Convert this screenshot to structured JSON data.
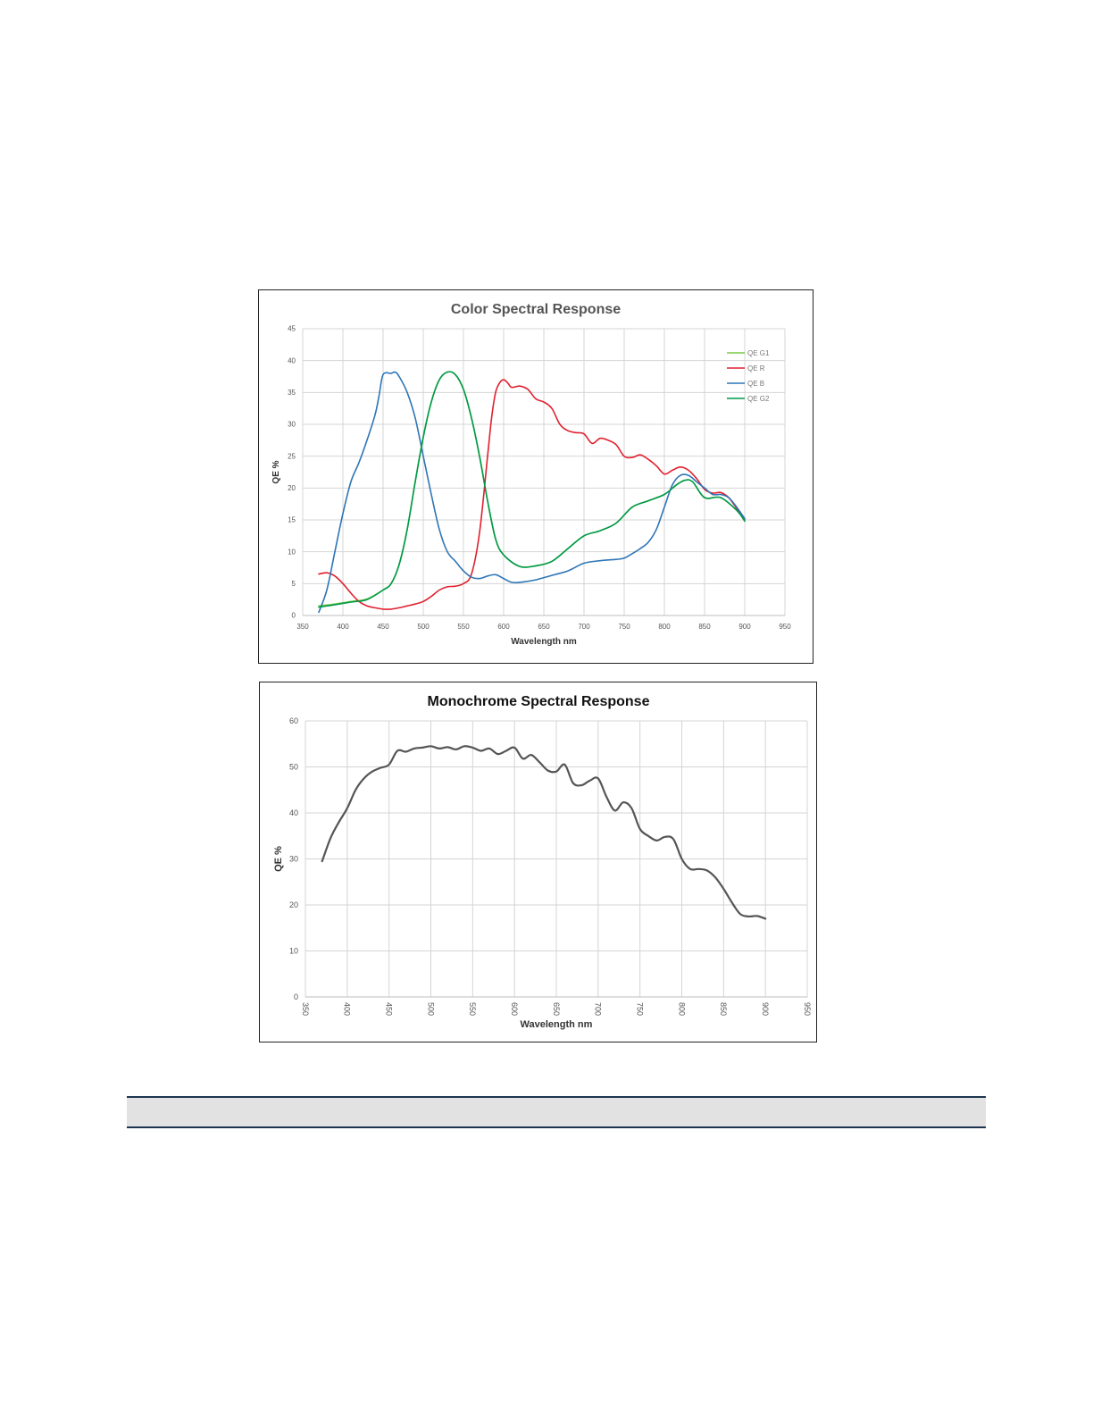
{
  "chart_data": [
    {
      "type": "line",
      "title": "Color Spectral Response",
      "xlabel": "Wavelength nm",
      "ylabel": "QE %",
      "xlim": [
        350,
        950
      ],
      "ylim": [
        0,
        45
      ],
      "xticks": [
        350,
        400,
        450,
        500,
        550,
        600,
        650,
        700,
        750,
        800,
        850,
        900,
        950
      ],
      "yticks": [
        0,
        5,
        10,
        15,
        20,
        25,
        30,
        35,
        40,
        45
      ],
      "grid": true,
      "legend": "top-right",
      "series": [
        {
          "name": "QE G1",
          "color": "#7ac943",
          "x": [
            370,
            390,
            410,
            430,
            450,
            460,
            470,
            480,
            490,
            500,
            510,
            520,
            530,
            540,
            550,
            560,
            570,
            580,
            590,
            600,
            620,
            640,
            660,
            680,
            700,
            720,
            740,
            760,
            780,
            800,
            815,
            825,
            835,
            850,
            870,
            890,
            900
          ],
          "values": [
            1.5,
            1.8,
            2.2,
            2.6,
            4.0,
            5.0,
            8.0,
            13.5,
            21.0,
            28.0,
            33.5,
            37.0,
            38.2,
            37.8,
            35.5,
            31.0,
            25.0,
            18.0,
            12.0,
            9.5,
            7.7,
            7.8,
            8.5,
            10.5,
            12.5,
            13.3,
            14.5,
            17.0,
            18.0,
            19.0,
            20.5,
            21.2,
            21.0,
            18.5,
            18.5,
            16.5,
            15.0
          ]
        },
        {
          "name": "QE R",
          "color": "#e0202e",
          "x": [
            370,
            380,
            390,
            400,
            410,
            420,
            430,
            440,
            450,
            460,
            470,
            480,
            490,
            500,
            510,
            520,
            530,
            540,
            550,
            560,
            570,
            580,
            585,
            590,
            595,
            600,
            605,
            610,
            620,
            630,
            640,
            650,
            660,
            670,
            680,
            690,
            700,
            710,
            720,
            730,
            740,
            750,
            760,
            770,
            780,
            790,
            800,
            810,
            820,
            830,
            840,
            850,
            860,
            870,
            880,
            890,
            900
          ],
          "values": [
            6.5,
            6.7,
            6.2,
            5.0,
            3.5,
            2.2,
            1.5,
            1.2,
            1.0,
            1.0,
            1.2,
            1.5,
            1.8,
            2.2,
            3.0,
            4.0,
            4.5,
            4.6,
            5.0,
            6.5,
            13.0,
            25.0,
            31.0,
            35.0,
            36.5,
            37.0,
            36.5,
            35.8,
            36.0,
            35.5,
            34.0,
            33.5,
            32.5,
            30.0,
            29.0,
            28.7,
            28.5,
            27.0,
            27.8,
            27.5,
            26.8,
            25.0,
            24.8,
            25.2,
            24.5,
            23.5,
            22.2,
            22.8,
            23.3,
            22.8,
            21.5,
            19.8,
            19.2,
            19.3,
            18.5,
            16.8,
            15.0
          ]
        },
        {
          "name": "QE B",
          "color": "#2e75b6",
          "x": [
            370,
            380,
            390,
            400,
            410,
            420,
            430,
            440,
            445,
            450,
            460,
            465,
            470,
            480,
            490,
            500,
            510,
            520,
            530,
            540,
            550,
            560,
            570,
            580,
            590,
            600,
            610,
            620,
            640,
            660,
            680,
            700,
            720,
            740,
            750,
            760,
            770,
            780,
            790,
            800,
            810,
            820,
            830,
            840,
            850,
            860,
            870,
            880,
            890,
            900
          ],
          "values": [
            0.5,
            4.0,
            10.0,
            16.0,
            21.0,
            24.0,
            27.5,
            31.5,
            34.5,
            37.8,
            38.0,
            38.2,
            37.5,
            35.0,
            31.0,
            25.0,
            19.0,
            13.5,
            10.0,
            8.5,
            7.0,
            6.0,
            5.8,
            6.2,
            6.4,
            5.8,
            5.2,
            5.2,
            5.6,
            6.3,
            7.0,
            8.2,
            8.6,
            8.8,
            9.0,
            9.7,
            10.5,
            11.5,
            13.5,
            17.0,
            20.5,
            22.0,
            22.0,
            21.0,
            20.0,
            19.0,
            19.0,
            18.5,
            17.0,
            15.2
          ]
        },
        {
          "name": "QE G2",
          "color": "#009a49",
          "x": [
            370,
            390,
            410,
            430,
            450,
            460,
            470,
            480,
            490,
            500,
            510,
            520,
            530,
            540,
            550,
            560,
            570,
            580,
            590,
            600,
            620,
            640,
            660,
            680,
            700,
            720,
            740,
            760,
            780,
            800,
            815,
            825,
            835,
            850,
            870,
            890,
            900
          ],
          "values": [
            1.3,
            1.7,
            2.1,
            2.5,
            4.0,
            5.0,
            8.0,
            13.5,
            21.0,
            28.0,
            33.5,
            37.0,
            38.2,
            37.8,
            35.5,
            31.0,
            25.0,
            18.0,
            12.0,
            9.5,
            7.7,
            7.8,
            8.5,
            10.5,
            12.5,
            13.3,
            14.5,
            17.0,
            18.0,
            19.0,
            20.5,
            21.2,
            21.0,
            18.5,
            18.5,
            16.5,
            14.8
          ]
        }
      ]
    },
    {
      "type": "line",
      "title": "Monochrome Spectral Response",
      "xlabel": "Wavelength nm",
      "ylabel": "QE %",
      "xlim": [
        350,
        950
      ],
      "ylim": [
        0,
        60
      ],
      "xticks": [
        350,
        400,
        450,
        500,
        550,
        600,
        650,
        700,
        750,
        800,
        850,
        900,
        950
      ],
      "yticks": [
        0,
        10,
        20,
        30,
        40,
        50,
        60
      ],
      "grid": true,
      "series": [
        {
          "color": "#555555",
          "x": [
            370,
            380,
            390,
            400,
            410,
            420,
            430,
            440,
            450,
            460,
            470,
            480,
            490,
            500,
            510,
            520,
            530,
            540,
            550,
            560,
            570,
            580,
            590,
            600,
            610,
            620,
            630,
            640,
            650,
            660,
            670,
            680,
            690,
            700,
            710,
            720,
            730,
            740,
            750,
            760,
            770,
            780,
            790,
            800,
            810,
            820,
            830,
            840,
            850,
            860,
            870,
            880,
            890,
            900
          ],
          "values": [
            29.5,
            34.5,
            38.0,
            41.0,
            45.0,
            47.5,
            49.0,
            49.8,
            50.5,
            53.5,
            53.3,
            54.0,
            54.2,
            54.5,
            54.0,
            54.3,
            53.8,
            54.5,
            54.2,
            53.5,
            54.0,
            52.8,
            53.5,
            54.2,
            51.8,
            52.6,
            51.0,
            49.2,
            49.0,
            50.5,
            46.5,
            46.0,
            47.0,
            47.5,
            43.5,
            40.5,
            42.3,
            41.0,
            36.5,
            35.0,
            34.0,
            34.8,
            34.3,
            30.0,
            27.8,
            27.8,
            27.5,
            26.0,
            23.5,
            20.5,
            18.0,
            17.5,
            17.6,
            17.0
          ]
        }
      ]
    }
  ]
}
